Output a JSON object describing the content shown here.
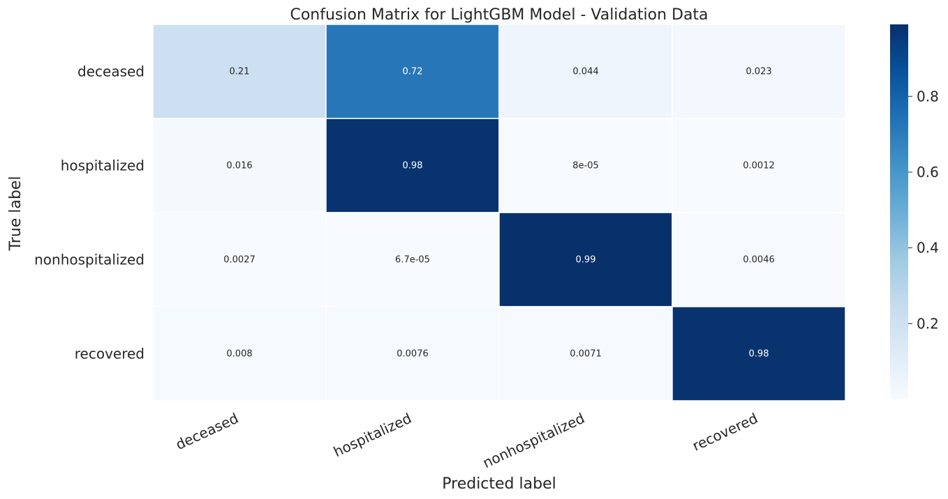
{
  "chart_data": {
    "type": "heatmap",
    "title": "Confusion Matrix for LightGBM Model - Validation Data",
    "xlabel": "Predicted label",
    "ylabel": "True label",
    "x_categories": [
      "deceased",
      "hospitalized",
      "nonhospitalized",
      "recovered"
    ],
    "y_categories": [
      "deceased",
      "hospitalized",
      "nonhospitalized",
      "recovered"
    ],
    "values": [
      [
        0.21,
        0.72,
        0.044,
        0.023
      ],
      [
        0.016,
        0.98,
        8e-05,
        0.0012
      ],
      [
        0.0027,
        6.7e-05,
        0.99,
        0.0046
      ],
      [
        0.008,
        0.0076,
        0.0071,
        0.98
      ]
    ],
    "annotations": [
      [
        "0.21",
        "0.72",
        "0.044",
        "0.023"
      ],
      [
        "0.016",
        "0.98",
        "8e-05",
        "0.0012"
      ],
      [
        "0.0027",
        "6.7e-05",
        "0.99",
        "0.0046"
      ],
      [
        "0.008",
        "0.0076",
        "0.0071",
        "0.98"
      ]
    ],
    "colormap": "Blues",
    "colorbar": {
      "range": [
        0,
        0.99
      ],
      "ticks": [
        0.2,
        0.4,
        0.6,
        0.8
      ],
      "tick_labels": [
        "0.2",
        "0.4",
        "0.6",
        "0.8"
      ]
    },
    "grid": false
  }
}
